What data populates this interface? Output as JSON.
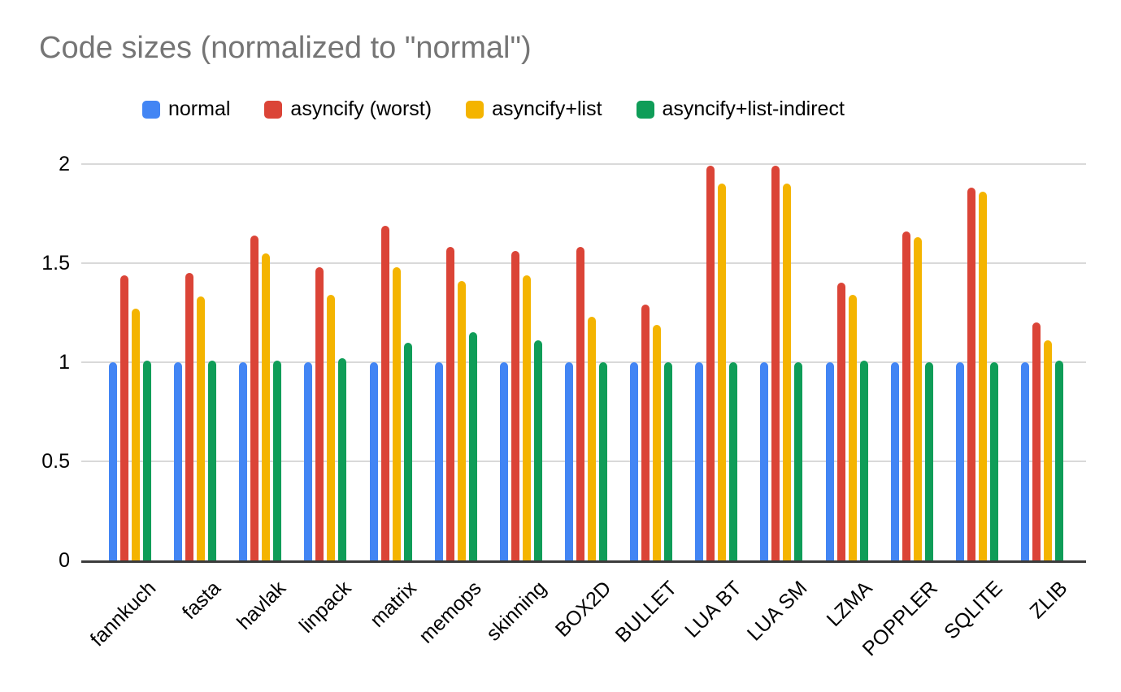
{
  "title": "Code sizes (normalized to \"normal\")",
  "colors": {
    "background": "#ffffff",
    "title_text": "#757575",
    "axis_text": "#000000",
    "gridline": "#d9d9d9",
    "axis_line": "#3b3b3b",
    "series_blue": "#4285F4",
    "series_red": "#DB4437",
    "series_yellow": "#F4B400",
    "series_green": "#0F9D58"
  },
  "chart_data": {
    "type": "bar",
    "title": "Code sizes (normalized to \"normal\")",
    "xlabel": "",
    "ylabel": "",
    "ylim": [
      0,
      2
    ],
    "yticks": [
      "0",
      "0.5",
      "1",
      "1.5",
      "2"
    ],
    "grid": true,
    "legend_position": "top",
    "categories": [
      "fannkuch",
      "fasta",
      "havlak",
      "linpack",
      "matrix",
      "memops",
      "skinning",
      "BOX2D",
      "BULLET",
      "LUA BT",
      "LUA SM",
      "LZMA",
      "POPPLER",
      "SQLITE",
      "ZLIB"
    ],
    "series": [
      {
        "name": "normal",
        "color": "#4285F4",
        "values": [
          1.0,
          1.0,
          1.0,
          1.0,
          1.0,
          1.0,
          1.0,
          1.0,
          1.0,
          1.0,
          1.0,
          1.0,
          1.0,
          1.0,
          1.0
        ]
      },
      {
        "name": "asyncify (worst)",
        "color": "#DB4437",
        "values": [
          1.44,
          1.45,
          1.64,
          1.48,
          1.69,
          1.58,
          1.56,
          1.58,
          1.29,
          1.99,
          1.99,
          1.4,
          1.66,
          1.88,
          1.2
        ]
      },
      {
        "name": "asyncify+list",
        "color": "#F4B400",
        "values": [
          1.27,
          1.33,
          1.55,
          1.34,
          1.48,
          1.41,
          1.44,
          1.23,
          1.19,
          1.9,
          1.9,
          1.34,
          1.63,
          1.86,
          1.11
        ]
      },
      {
        "name": "asyncify+list-indirect",
        "color": "#0F9D58",
        "values": [
          1.01,
          1.01,
          1.01,
          1.02,
          1.1,
          1.15,
          1.11,
          1.0,
          1.0,
          1.0,
          1.0,
          1.01,
          1.0,
          1.0,
          1.01
        ]
      }
    ]
  }
}
